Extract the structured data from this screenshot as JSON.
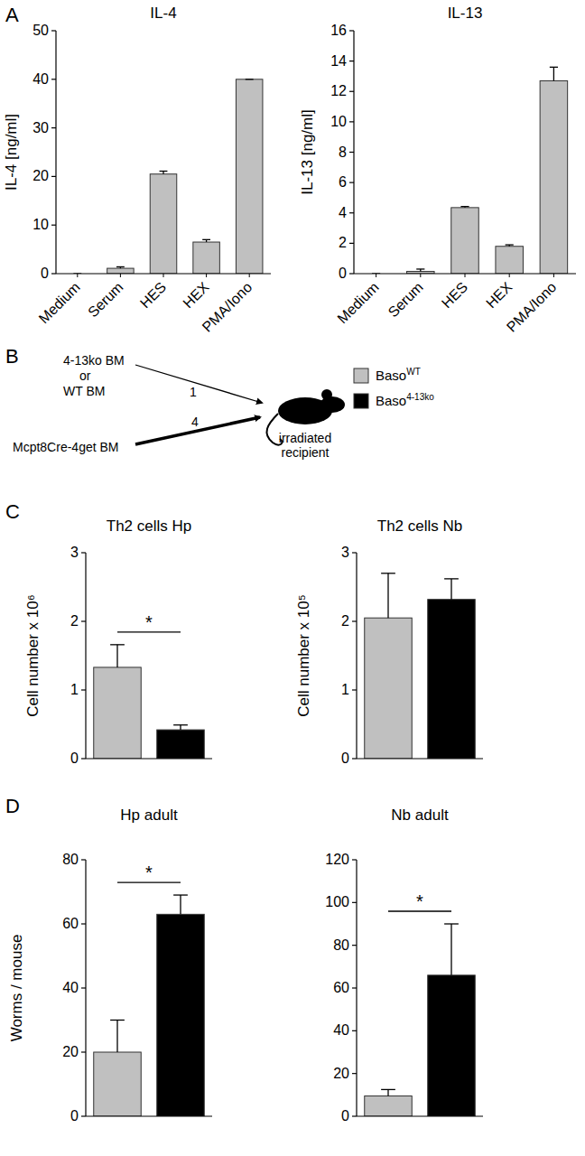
{
  "panel_labels": [
    "A",
    "B",
    "C",
    "D"
  ],
  "chart_data": [
    {
      "type": "bar",
      "title": "IL-4",
      "y_label": "IL-4 [ng/ml]",
      "categories": [
        "Medium",
        "Serum",
        "HES",
        "HEX",
        "PMA/Iono"
      ],
      "values": [
        0,
        1.1,
        20.5,
        6.5,
        40
      ],
      "errors": [
        0,
        0.3,
        0.6,
        0.5,
        0
      ],
      "color": "#c0c0c0",
      "ylim": [
        0,
        50
      ],
      "yticks": [
        0,
        10,
        20,
        30,
        40,
        50
      ]
    },
    {
      "type": "bar",
      "title": "IL-13",
      "y_label": "IL-13 [ng/ml]",
      "categories": [
        "Medium",
        "Serum",
        "HES",
        "HEX",
        "PMA/Iono"
      ],
      "values": [
        0,
        0.15,
        4.35,
        1.8,
        12.7
      ],
      "errors": [
        0,
        0.15,
        0.07,
        0.1,
        0.9
      ],
      "color": "#c0c0c0",
      "ylim": [
        0,
        16
      ],
      "yticks": [
        0,
        2,
        4,
        6,
        8,
        10,
        12,
        14,
        16
      ]
    },
    {
      "type": "bar",
      "title": "Th2 cells Hp",
      "y_label": "Cell number x 10⁶",
      "categories": [
        null,
        null
      ],
      "values": [
        1.33,
        0.42
      ],
      "errors": [
        0.33,
        0.07
      ],
      "colors": [
        "#c0c0c0",
        "#000000"
      ],
      "ylim": [
        0,
        3
      ],
      "yticks": [
        0,
        1,
        2,
        3
      ],
      "annotation": "*"
    },
    {
      "type": "bar",
      "title": "Th2 cells Nb",
      "y_label": "Cell number x 10⁵",
      "categories": [
        null,
        null
      ],
      "values": [
        2.05,
        2.32
      ],
      "errors": [
        0.65,
        0.3
      ],
      "colors": [
        "#c0c0c0",
        "#000000"
      ],
      "ylim": [
        0,
        3
      ],
      "yticks": [
        0,
        1,
        2,
        3
      ]
    },
    {
      "type": "bar",
      "title": "Hp adult",
      "y_label": "Worms / mouse",
      "categories": [
        null,
        null
      ],
      "values": [
        20,
        63
      ],
      "errors": [
        10,
        6
      ],
      "colors": [
        "#c0c0c0",
        "#000000"
      ],
      "ylim": [
        0,
        80
      ],
      "yticks": [
        0,
        20,
        40,
        60,
        80
      ],
      "annotation": "*"
    },
    {
      "type": "bar",
      "title": "Nb adult",
      "categories": [
        null,
        null
      ],
      "values": [
        9.5,
        66
      ],
      "errors": [
        3,
        24
      ],
      "colors": [
        "#c0c0c0",
        "#000000"
      ],
      "ylim": [
        0,
        120
      ],
      "yticks": [
        0,
        20,
        40,
        60,
        80,
        100,
        120
      ],
      "annotation": "*"
    }
  ],
  "diagram": {
    "inputs": [
      {
        "lines": [
          "4-13ko BM",
          "or",
          "WT BM"
        ],
        "ratio": 1
      },
      {
        "lines": [
          "Mcpt8Cre-4get BM"
        ],
        "ratio": 4
      }
    ],
    "recipient": "irradiated recipient",
    "legend": [
      {
        "name": "Baso",
        "superscript": "WT",
        "color": "#c0c0c0"
      },
      {
        "name": "Baso",
        "superscript": "4-13ko",
        "color": "#000000"
      }
    ]
  }
}
